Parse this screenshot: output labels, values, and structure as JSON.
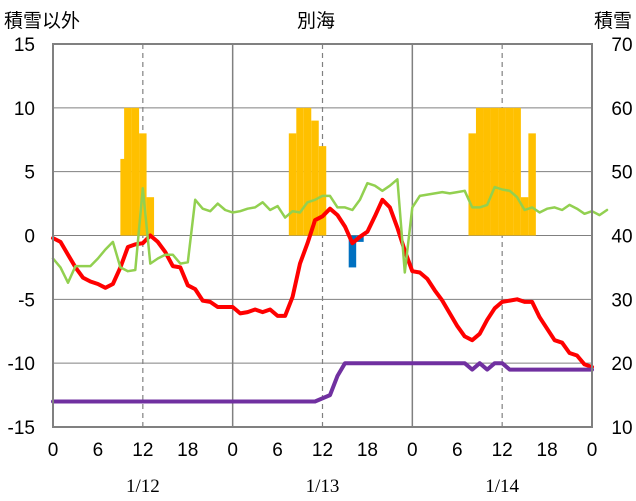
{
  "chart_data": {
    "type": "line",
    "title": "別海",
    "left_axis_title": "積雪以外",
    "right_axis_title": "積雪",
    "ylim_left": [
      -15,
      15
    ],
    "yticks_left": [
      "15",
      "10",
      "5",
      "0",
      "-5",
      "-10",
      "-15"
    ],
    "ylim_right": [
      10,
      70
    ],
    "yticks_right": [
      "70",
      "60",
      "50",
      "40",
      "30",
      "20",
      "10"
    ],
    "xlim_hours": [
      0,
      72
    ],
    "xticks": [
      "0",
      "6",
      "12",
      "18",
      "0",
      "6",
      "12",
      "18",
      "0",
      "6",
      "12",
      "18",
      "0"
    ],
    "date_labels": [
      "1/12",
      "1/13",
      "1/14"
    ],
    "colors": {
      "temp": "#ff0000",
      "green": "#92d050",
      "snow": "#7030a0",
      "precip": "#ffc000",
      "negative": "#0070c0"
    },
    "bars": [
      {
        "h": 9.5,
        "v": 6
      },
      {
        "h": 10,
        "v": 10
      },
      {
        "h": 11,
        "v": 10
      },
      {
        "h": 12,
        "v": 8
      },
      {
        "h": 13,
        "v": 3
      },
      {
        "h": 32,
        "v": 8
      },
      {
        "h": 33,
        "v": 10
      },
      {
        "h": 34,
        "v": 10
      },
      {
        "h": 35,
        "v": 9
      },
      {
        "h": 36,
        "v": 7
      },
      {
        "h": 40,
        "v": -2.5
      },
      {
        "h": 41,
        "v": -0.5
      },
      {
        "h": 56,
        "v": 8
      },
      {
        "h": 57,
        "v": 10
      },
      {
        "h": 58,
        "v": 10
      },
      {
        "h": 59,
        "v": 10
      },
      {
        "h": 60,
        "v": 10
      },
      {
        "h": 61,
        "v": 10
      },
      {
        "h": 62,
        "v": 10
      },
      {
        "h": 63,
        "v": 3
      },
      {
        "h": 64,
        "v": 8
      }
    ],
    "series": [
      {
        "key": "temp",
        "values": [
          -0.2,
          -0.5,
          -1.5,
          -2.5,
          -3.3,
          -3.6,
          -3.8,
          -4.1,
          -3.8,
          -2.5,
          -0.9,
          -0.7,
          -0.6,
          0,
          -0.5,
          -1.3,
          -2.4,
          -2.5,
          -3.9,
          -4.2,
          -5.1,
          -5.2,
          -5.6,
          -5.6,
          -5.6,
          -6.1,
          -6,
          -5.8,
          -6,
          -5.8,
          -6.3,
          -6.3,
          -4.8,
          -2.2,
          -0.6,
          1.2,
          1.5,
          2.1,
          1.6,
          0.7,
          -0.6,
          -0.1,
          0.3,
          1.5,
          2.8,
          2.2,
          0.6,
          -1.2,
          -2.8,
          -2.9,
          -3.4,
          -4.3,
          -5.1,
          -6.1,
          -7.1,
          -7.9,
          -8.2,
          -7.7,
          -6.6,
          -5.7,
          -5.2,
          -5.1,
          -5,
          -5.2,
          -5.2,
          -6.4,
          -7.3,
          -8.2,
          -8.4,
          -9.2,
          -9.4,
          -10.1,
          -10.3
        ]
      },
      {
        "key": "green",
        "values": [
          -1.8,
          -2.5,
          -3.7,
          -2.4,
          -2.4,
          -2.4,
          -1.8,
          -1.1,
          -0.5,
          -2.5,
          -2.8,
          -2.7,
          3.7,
          -2.2,
          -1.8,
          -1.5,
          -1.5,
          -2.2,
          -2.1,
          2.8,
          2.1,
          1.9,
          2.5,
          2,
          1.8,
          1.9,
          2.1,
          2.2,
          2.6,
          2,
          2.3,
          1.4,
          1.9,
          1.8,
          2.6,
          2.8,
          3.1,
          3.1,
          2.2,
          2.2,
          2,
          2.8,
          4.1,
          3.9,
          3.5,
          3.9,
          4.4,
          -2.9,
          2.2,
          3.1,
          3.2,
          3.3,
          3.4,
          3.3,
          3.4,
          3.5,
          2.2,
          2.2,
          2.4,
          3.8,
          3.6,
          3.5,
          3,
          2,
          2.2,
          1.8,
          2.1,
          2.2,
          2,
          2.4,
          2.1,
          1.7,
          1.9,
          1.6,
          2
        ]
      },
      {
        "key": "snow",
        "values": [
          {
            "h": 0,
            "v": 14
          },
          {
            "h": 35,
            "v": 14
          },
          {
            "h": 37,
            "v": 15
          },
          {
            "h": 38,
            "v": 18
          },
          {
            "h": 39,
            "v": 20
          },
          {
            "h": 55,
            "v": 20
          },
          {
            "h": 56,
            "v": 19
          },
          {
            "h": 57,
            "v": 20
          },
          {
            "h": 58,
            "v": 19
          },
          {
            "h": 59,
            "v": 20
          },
          {
            "h": 60,
            "v": 20
          },
          {
            "h": 61,
            "v": 19
          },
          {
            "h": 72,
            "v": 19
          }
        ]
      }
    ]
  }
}
